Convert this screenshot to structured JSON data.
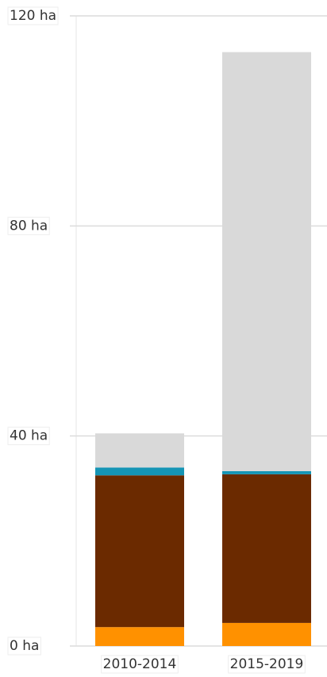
{
  "chart_data": {
    "type": "stacked-bar",
    "categories": [
      "2010-2014",
      "2015-2019"
    ],
    "series": [
      {
        "color": "#ff9100",
        "values": [
          3.6,
          4.4
        ]
      },
      {
        "color": "#6b2a00",
        "values": [
          28.9,
          28.3
        ]
      },
      {
        "color": "#1595b5",
        "values": [
          1.5,
          0.6
        ]
      },
      {
        "color": "#d9d9d9",
        "values": [
          6.5,
          79.8
        ]
      }
    ],
    "ylim": [
      0,
      120
    ],
    "yticks": [
      {
        "value": 0,
        "label": "0 ha"
      },
      {
        "value": 40,
        "label": "40 ha"
      },
      {
        "value": 80,
        "label": "80 ha"
      },
      {
        "value": 120,
        "label": "120 ha"
      }
    ],
    "grid": true
  }
}
